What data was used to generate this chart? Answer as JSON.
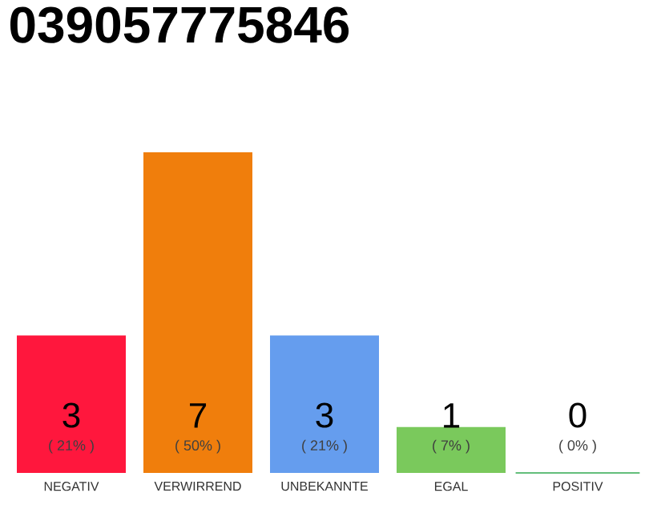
{
  "chart_data": {
    "type": "bar",
    "title": "039057775846",
    "data_labels": true,
    "categories": [
      "NEGATIV",
      "VERWIRREND",
      "UNBEKANNTE",
      "EGAL",
      "POSITIV"
    ],
    "values": [
      3,
      7,
      3,
      1,
      0
    ],
    "colors": [
      "#ff173d",
      "#f07e0c",
      "#659dee",
      "#7ac95c",
      "#2fa84f"
    ],
    "annotations": [
      "( 21% )",
      "( 50% )",
      "( 21% )",
      "( 7% )",
      "( 0% )"
    ]
  }
}
